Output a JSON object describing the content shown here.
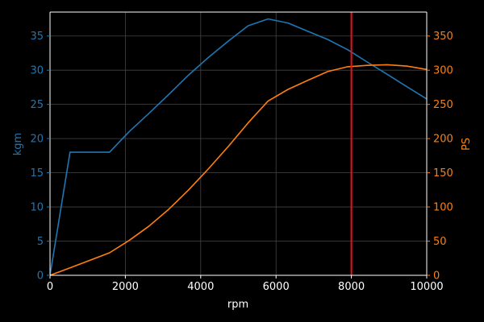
{
  "chart_data": {
    "type": "line",
    "title": "",
    "xlabel": "rpm",
    "ylabel_left": "kgm",
    "ylabel_right": "PS",
    "xlim": [
      0,
      10000
    ],
    "ylim_left": [
      0,
      38.5
    ],
    "ylim_right": [
      0,
      385
    ],
    "x_ticks": [
      0,
      2000,
      4000,
      6000,
      8000,
      10000
    ],
    "y_ticks_left": [
      0,
      5,
      10,
      15,
      20,
      25,
      30,
      35
    ],
    "y_ticks_right": [
      0,
      50,
      100,
      150,
      200,
      250,
      300,
      350
    ],
    "grid": true,
    "background": "#000000",
    "axis_color": "#ffffff",
    "grid_color": "#444444",
    "series": [
      {
        "axis": "left",
        "color": "#1f77b4",
        "x": [
          0,
          530,
          1580,
          2100,
          2630,
          3160,
          3680,
          4210,
          4740,
          5260,
          5790,
          6320,
          6840,
          7370,
          7900,
          8420,
          8950,
          9470,
          10000
        ],
        "values": [
          0,
          18,
          18,
          21,
          23.7,
          26.5,
          29.3,
          31.9,
          34.3,
          36.5,
          37.5,
          36.9,
          35.7,
          34.5,
          33,
          31.2,
          29.4,
          27.6,
          25.8
        ]
      },
      {
        "axis": "right",
        "color": "#ff7f0e",
        "x": [
          0,
          530,
          1580,
          2100,
          2630,
          3160,
          3680,
          4210,
          4740,
          5260,
          5790,
          6320,
          6840,
          7370,
          7900,
          8420,
          8950,
          9470,
          10000
        ],
        "values": [
          0,
          11,
          33,
          51,
          72,
          97,
          125,
          156,
          189,
          223,
          255,
          272,
          285,
          298,
          305,
          307,
          308,
          306,
          301
        ]
      }
    ],
    "vlines": [
      {
        "x": 8000,
        "color": "#e8121b"
      }
    ]
  }
}
